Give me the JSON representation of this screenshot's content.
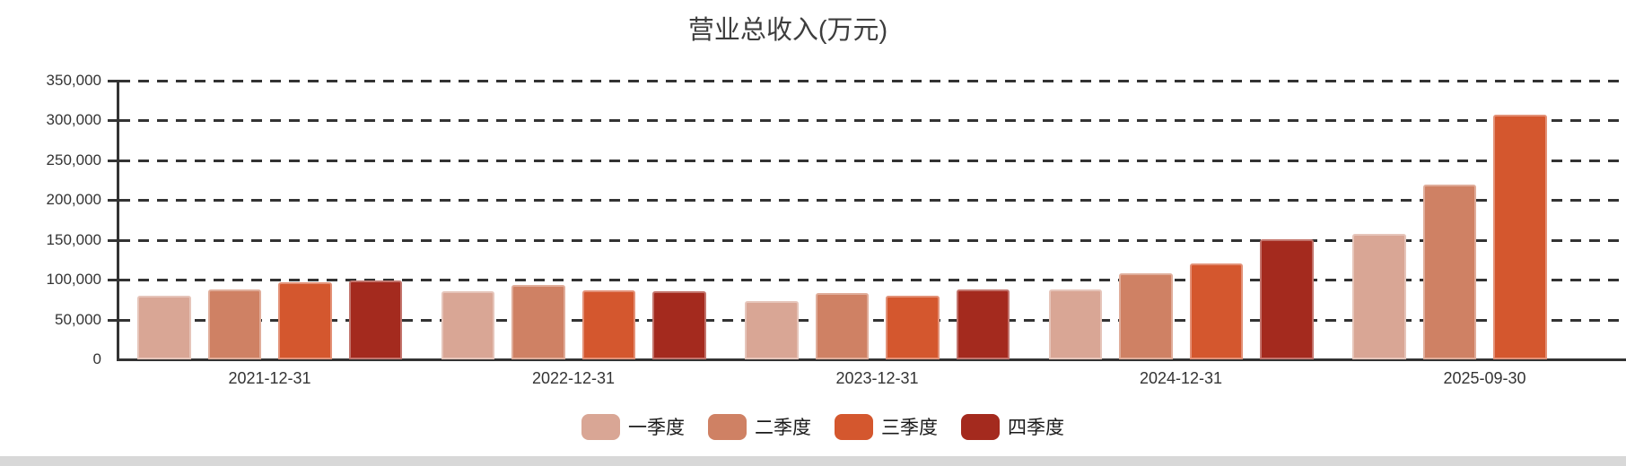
{
  "chart_data": {
    "type": "bar",
    "title": "营业总收入(万元)",
    "categories": [
      "2021-12-31",
      "2022-12-31",
      "2023-12-31",
      "2024-12-31",
      "2025-09-30"
    ],
    "series": [
      {
        "name": "一季度",
        "color": "#D9A695",
        "values": [
          80000,
          85000,
          73000,
          88000,
          158000
        ]
      },
      {
        "name": "二季度",
        "color": "#CF8164",
        "values": [
          88000,
          93000,
          83000,
          108000,
          220000
        ]
      },
      {
        "name": "三季度",
        "color": "#D4572E",
        "values": [
          97000,
          87000,
          80000,
          120000,
          307000
        ]
      },
      {
        "name": "四季度",
        "color": "#A42A1E",
        "values": [
          99000,
          86000,
          88000,
          151000,
          null
        ]
      }
    ],
    "ylabel_ticks": [
      "0",
      "50,000",
      "100,000",
      "150,000",
      "200,000",
      "250,000",
      "300,000",
      "350,000"
    ],
    "ylim": [
      0,
      350000
    ],
    "ystep": 50000,
    "grid": "horizontal-dashed",
    "legend_position": "bottom",
    "axis_color": "#333333"
  }
}
